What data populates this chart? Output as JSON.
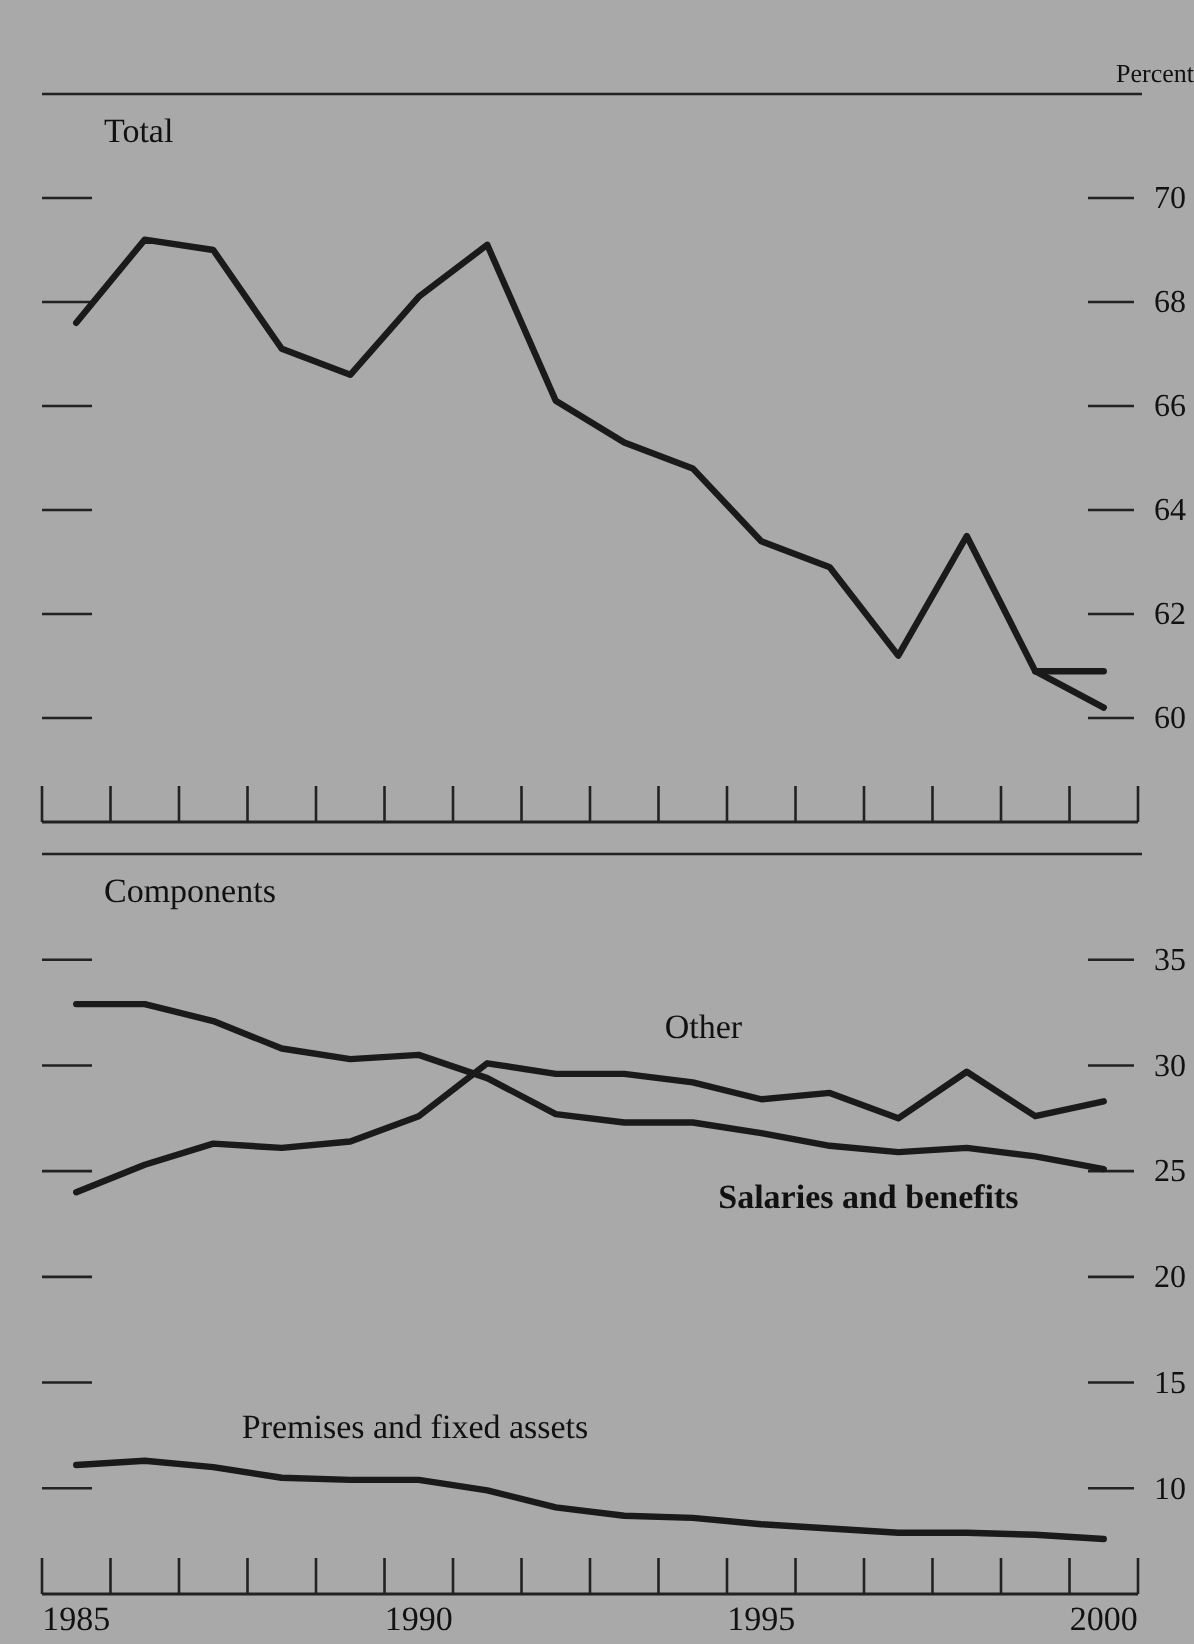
{
  "chart_data": [
    {
      "type": "line",
      "title": "Total",
      "ylabel": "Percent",
      "tick_labels": "y",
      "xlim": [
        1984.5,
        2000.5
      ],
      "ylim": [
        58,
        72
      ],
      "yticks": [
        60,
        62,
        64,
        66,
        68,
        70
      ],
      "x": [
        1985,
        1986,
        1987,
        1988,
        1989,
        1990,
        1991,
        1992,
        1993,
        1994,
        1995,
        1996,
        1997,
        1998,
        1999,
        2000
      ],
      "series": [
        {
          "color": "#1a1a1a",
          "values": [
            67.6,
            69.2,
            69.0,
            67.1,
            66.6,
            68.1,
            69.1,
            66.1,
            65.3,
            64.8,
            63.4,
            62.9,
            61.2,
            63.5,
            60.9,
            60.2
          ]
        },
        {
          "color": "#1a1a1a",
          "x": [
            1999,
            2000
          ],
          "values": [
            60.9,
            60.9
          ]
        }
      ]
    },
    {
      "type": "line",
      "title": "Components",
      "xlim": [
        1984.5,
        2000.5
      ],
      "xticks": [
        1985,
        1990,
        1995,
        2000
      ],
      "ylim": [
        5,
        40
      ],
      "yticks": [
        10,
        15,
        20,
        25,
        30,
        35
      ],
      "x": [
        1985,
        1986,
        1987,
        1988,
        1989,
        1990,
        1991,
        1992,
        1993,
        1994,
        1995,
        1996,
        1997,
        1998,
        1999,
        2000
      ],
      "series": [
        {
          "name": "Other",
          "color": "#1a1a1a",
          "values": [
            24.0,
            25.3,
            26.3,
            26.1,
            26.4,
            27.6,
            30.1,
            29.6,
            29.6,
            29.2,
            28.4,
            28.7,
            27.5,
            29.7,
            27.6,
            28.3
          ]
        },
        {
          "name": "Salaries and benefits",
          "color": "#1a1a1a",
          "values": [
            32.9,
            32.9,
            32.1,
            30.8,
            30.3,
            30.5,
            29.4,
            27.7,
            27.3,
            27.3,
            26.8,
            26.2,
            25.9,
            26.1,
            25.7,
            25.1
          ]
        },
        {
          "name": "Premises and fixed assets",
          "color": "#1a1a1a",
          "values": [
            11.1,
            11.3,
            11.0,
            10.5,
            10.4,
            10.4,
            9.9,
            9.1,
            8.7,
            8.6,
            8.3,
            8.1,
            7.9,
            7.9,
            7.8,
            7.6
          ]
        }
      ]
    }
  ]
}
